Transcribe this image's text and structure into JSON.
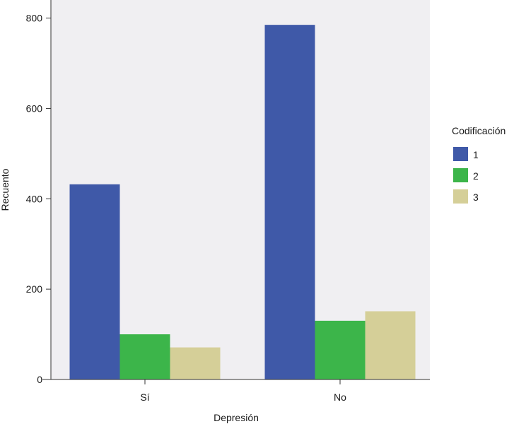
{
  "chart_data": {
    "type": "bar",
    "categories": [
      "Sí",
      "No"
    ],
    "series": [
      {
        "name": "1",
        "values": [
          432,
          785
        ]
      },
      {
        "name": "2",
        "values": [
          100,
          130
        ]
      },
      {
        "name": "3",
        "values": [
          71,
          151
        ]
      }
    ],
    "xlabel": "Depresión",
    "ylabel": "Recuento",
    "ylim": [
      0,
      840
    ],
    "yticks": [
      0,
      200,
      400,
      600,
      800
    ],
    "legend": {
      "title": "Codificación",
      "position": "right"
    },
    "colors": [
      "#3f59a8",
      "#3cb54a",
      "#d5cf98"
    ],
    "plot_background": "#f0eff2",
    "grid": false
  }
}
